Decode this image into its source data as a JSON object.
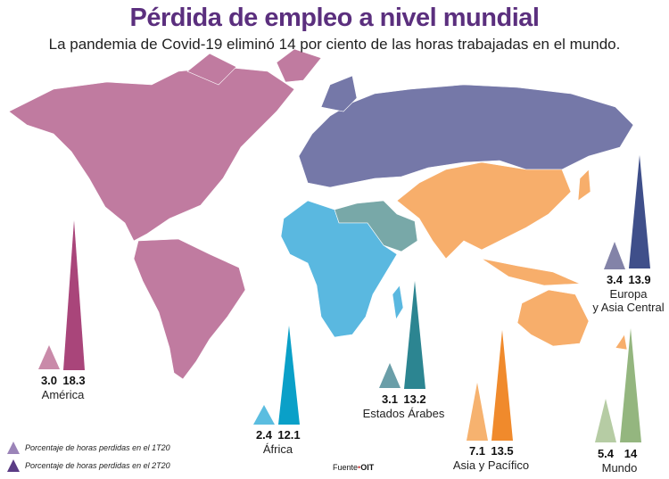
{
  "header": {
    "title": "Pérdida de empleo a nivel mundial",
    "subtitle": "La pandemia de Covid-19 eliminó 14 por ciento de las horas trabajadas en el mundo."
  },
  "legend": {
    "q1": "Porcentaje de horas perdidas en el 1T20",
    "q2": "Porcentaje de horas perdidas en el 2T20",
    "q1_color": "#9b84b8",
    "q2_color": "#5b3c85"
  },
  "source": {
    "label": "Fuente",
    "sep": "•",
    "value": "OIT"
  },
  "map_colors": {
    "america": "#c07ba0",
    "africa": "#5ab8e0",
    "arab": "#78a8a8",
    "europe": "#7578a8",
    "asia": "#f7ae6b"
  },
  "chart_data": {
    "type": "bar",
    "title": "Pérdida de empleo a nivel mundial",
    "categories": [
      "América",
      "África",
      "Estados Árabes",
      "Asia y Pacífico",
      "Europa y Asia Central",
      "Mundo"
    ],
    "series": [
      {
        "name": "Porcentaje de horas perdidas en el 1T20",
        "values": [
          3.0,
          2.4,
          3.1,
          7.1,
          3.4,
          5.4
        ]
      },
      {
        "name": "Porcentaje de horas perdidas en el 2T20",
        "values": [
          18.3,
          12.1,
          13.2,
          13.5,
          13.9,
          14
        ]
      }
    ],
    "value_labels": [
      [
        "3.0",
        "18.3"
      ],
      [
        "2.4",
        "12.1"
      ],
      [
        "3.1",
        "13.2"
      ],
      [
        "7.1",
        "13.5"
      ],
      [
        "3.4",
        "13.9"
      ],
      [
        "5.4",
        "14"
      ]
    ],
    "label_lines": [
      [
        "América"
      ],
      [
        "África"
      ],
      [
        "Estados Árabes"
      ],
      [
        "Asia y Pacífico"
      ],
      [
        "Europa",
        "y Asia Central"
      ],
      [
        "Mundo"
      ]
    ],
    "colors": [
      [
        "#c98aa9",
        "#a9457a"
      ],
      [
        "#5bbde0",
        "#0aa0c8"
      ],
      [
        "#6a9ea8",
        "#2c8591"
      ],
      [
        "#f6b26f",
        "#f08a2c"
      ],
      [
        "#8383a8",
        "#3f4f8a"
      ],
      [
        "#b6cca4",
        "#94b67f"
      ]
    ]
  }
}
